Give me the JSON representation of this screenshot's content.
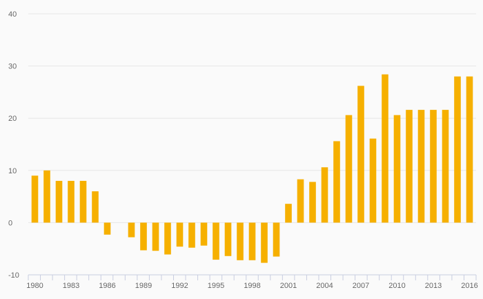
{
  "chart_data": {
    "type": "bar",
    "title": "",
    "xlabel": "",
    "ylabel": "",
    "ylim": [
      -10,
      40
    ],
    "yticks": [
      -10,
      0,
      10,
      20,
      30,
      40
    ],
    "grid": true,
    "bar_color": "#f6b000",
    "categories": [
      1980,
      1981,
      1982,
      1983,
      1984,
      1985,
      1986,
      1987,
      1988,
      1989,
      1990,
      1991,
      1992,
      1993,
      1994,
      1995,
      1996,
      1997,
      1998,
      1999,
      2000,
      2001,
      2002,
      2003,
      2004,
      2005,
      2006,
      2007,
      2008,
      2009,
      2010,
      2011,
      2012,
      2013,
      2014,
      2015,
      2016
    ],
    "values": [
      9.0,
      10.0,
      8.0,
      8.0,
      8.0,
      6.0,
      -2.3,
      0,
      -2.8,
      -5.3,
      -5.4,
      -6.1,
      -4.6,
      -4.8,
      -4.4,
      -7.1,
      -6.4,
      -7.2,
      -7.2,
      -7.7,
      -6.5,
      3.6,
      8.3,
      7.8,
      10.6,
      15.6,
      20.6,
      26.2,
      16.1,
      28.4,
      20.6,
      21.6,
      21.6,
      21.6,
      21.6,
      28.0,
      28.0
    ],
    "xtick_labels": [
      "1980",
      "1983",
      "1986",
      "1989",
      "1992",
      "1995",
      "1998",
      "2001",
      "2004",
      "2007",
      "2010",
      "2013",
      "2016"
    ]
  }
}
